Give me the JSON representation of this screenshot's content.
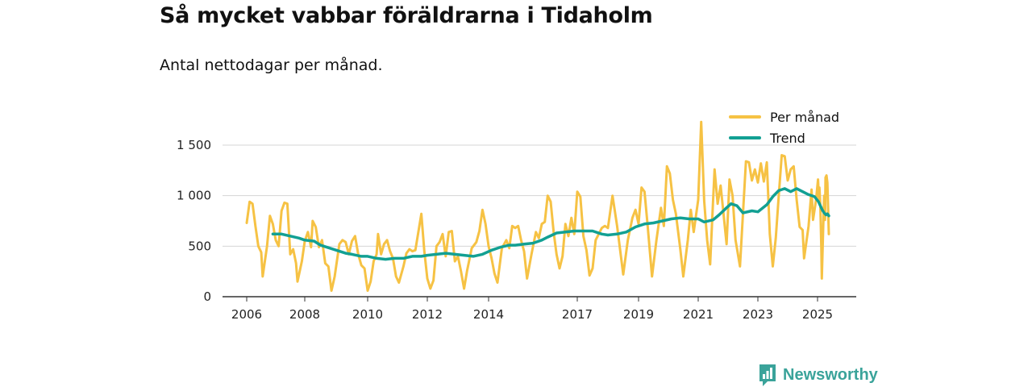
{
  "title": "Så mycket vabbar föräldrarna i Tidaholm",
  "subtitle": "Antal nettodagar per månad.",
  "brand": {
    "name": "Newsworthy"
  },
  "colors": {
    "per_month": "#f6c244",
    "trend": "#12a093",
    "grid": "#d4d4d4",
    "axis": "#333333",
    "brand": "#3aa39a"
  },
  "chart_data": {
    "type": "line",
    "title": "Så mycket vabbar föräldrarna i Tidaholm",
    "subtitle": "Antal nettodagar per månad.",
    "xlabel": "",
    "ylabel": "",
    "xlim": [
      2006.0,
      2025.5
    ],
    "ylim": [
      0,
      1800
    ],
    "grid": true,
    "legend_position": "top-right",
    "y_ticks": [
      {
        "value": 0,
        "label": "0"
      },
      {
        "value": 500,
        "label": "500"
      },
      {
        "value": 1000,
        "label": "1 000"
      },
      {
        "value": 1500,
        "label": "1 500"
      }
    ],
    "x_ticks": [
      {
        "value": 2006,
        "label": "2006"
      },
      {
        "value": 2008,
        "label": "2008"
      },
      {
        "value": 2010,
        "label": "2010"
      },
      {
        "value": 2012,
        "label": "2012"
      },
      {
        "value": 2014,
        "label": "2014"
      },
      {
        "value": 2017,
        "label": "2017"
      },
      {
        "value": 2019,
        "label": "2019"
      },
      {
        "value": 2021,
        "label": "2021"
      },
      {
        "value": 2023,
        "label": "2023"
      },
      {
        "value": 2025,
        "label": "2025"
      }
    ],
    "series": [
      {
        "name": "Per månad",
        "color": "#f6c244",
        "points": [
          [
            2006.0,
            730
          ],
          [
            2006.1,
            940
          ],
          [
            2006.2,
            920
          ],
          [
            2006.3,
            700
          ],
          [
            2006.4,
            500
          ],
          [
            2006.5,
            440
          ],
          [
            2006.55,
            200
          ],
          [
            2006.7,
            500
          ],
          [
            2006.8,
            800
          ],
          [
            2006.9,
            720
          ],
          [
            2007.0,
            560
          ],
          [
            2007.1,
            500
          ],
          [
            2007.2,
            850
          ],
          [
            2007.3,
            930
          ],
          [
            2007.4,
            920
          ],
          [
            2007.5,
            420
          ],
          [
            2007.6,
            470
          ],
          [
            2007.7,
            330
          ],
          [
            2007.75,
            150
          ],
          [
            2007.9,
            350
          ],
          [
            2008.0,
            550
          ],
          [
            2008.1,
            640
          ],
          [
            2008.2,
            490
          ],
          [
            2008.25,
            750
          ],
          [
            2008.35,
            690
          ],
          [
            2008.45,
            490
          ],
          [
            2008.55,
            560
          ],
          [
            2008.65,
            330
          ],
          [
            2008.75,
            300
          ],
          [
            2008.85,
            60
          ],
          [
            2008.95,
            200
          ],
          [
            2009.1,
            520
          ],
          [
            2009.2,
            560
          ],
          [
            2009.3,
            540
          ],
          [
            2009.4,
            420
          ],
          [
            2009.5,
            550
          ],
          [
            2009.6,
            600
          ],
          [
            2009.7,
            420
          ],
          [
            2009.8,
            310
          ],
          [
            2009.9,
            280
          ],
          [
            2010.0,
            60
          ],
          [
            2010.1,
            150
          ],
          [
            2010.2,
            350
          ],
          [
            2010.3,
            420
          ],
          [
            2010.35,
            620
          ],
          [
            2010.45,
            420
          ],
          [
            2010.55,
            520
          ],
          [
            2010.65,
            560
          ],
          [
            2010.75,
            450
          ],
          [
            2010.85,
            380
          ],
          [
            2010.95,
            200
          ],
          [
            2011.05,
            140
          ],
          [
            2011.2,
            300
          ],
          [
            2011.3,
            430
          ],
          [
            2011.4,
            470
          ],
          [
            2011.5,
            450
          ],
          [
            2011.6,
            460
          ],
          [
            2011.7,
            640
          ],
          [
            2011.8,
            820
          ],
          [
            2011.9,
            450
          ],
          [
            2012.0,
            180
          ],
          [
            2012.1,
            80
          ],
          [
            2012.2,
            160
          ],
          [
            2012.3,
            500
          ],
          [
            2012.4,
            540
          ],
          [
            2012.5,
            620
          ],
          [
            2012.6,
            400
          ],
          [
            2012.7,
            640
          ],
          [
            2012.8,
            650
          ],
          [
            2012.9,
            350
          ],
          [
            2013.0,
            400
          ],
          [
            2013.1,
            250
          ],
          [
            2013.2,
            80
          ],
          [
            2013.3,
            260
          ],
          [
            2013.45,
            480
          ],
          [
            2013.6,
            540
          ],
          [
            2013.7,
            650
          ],
          [
            2013.8,
            860
          ],
          [
            2013.9,
            720
          ],
          [
            2014.0,
            500
          ],
          [
            2014.1,
            380
          ],
          [
            2014.2,
            230
          ],
          [
            2014.3,
            140
          ],
          [
            2014.45,
            480
          ],
          [
            2014.6,
            560
          ],
          [
            2014.7,
            480
          ],
          [
            2014.8,
            700
          ],
          [
            2014.9,
            680
          ],
          [
            2015.0,
            700
          ],
          [
            2015.1,
            560
          ],
          [
            2015.2,
            450
          ],
          [
            2015.3,
            180
          ],
          [
            2015.45,
            420
          ],
          [
            2015.6,
            640
          ],
          [
            2015.7,
            580
          ],
          [
            2015.8,
            720
          ],
          [
            2015.9,
            740
          ],
          [
            2016.0,
            1000
          ],
          [
            2016.1,
            940
          ],
          [
            2016.2,
            640
          ],
          [
            2016.3,
            420
          ],
          [
            2016.4,
            280
          ],
          [
            2016.5,
            400
          ],
          [
            2016.6,
            720
          ],
          [
            2016.7,
            600
          ],
          [
            2016.8,
            780
          ],
          [
            2016.9,
            620
          ],
          [
            2017.0,
            1040
          ],
          [
            2017.1,
            990
          ],
          [
            2017.2,
            600
          ],
          [
            2017.3,
            460
          ],
          [
            2017.4,
            210
          ],
          [
            2017.5,
            280
          ],
          [
            2017.6,
            560
          ],
          [
            2017.7,
            620
          ],
          [
            2017.8,
            680
          ],
          [
            2017.9,
            700
          ],
          [
            2018.0,
            680
          ],
          [
            2018.15,
            1000
          ],
          [
            2018.3,
            700
          ],
          [
            2018.5,
            220
          ],
          [
            2018.65,
            560
          ],
          [
            2018.8,
            780
          ],
          [
            2018.9,
            860
          ],
          [
            2019.0,
            720
          ],
          [
            2019.1,
            1080
          ],
          [
            2019.2,
            1040
          ],
          [
            2019.3,
            720
          ],
          [
            2019.45,
            200
          ],
          [
            2019.6,
            560
          ],
          [
            2019.75,
            880
          ],
          [
            2019.85,
            700
          ],
          [
            2019.95,
            1290
          ],
          [
            2020.05,
            1220
          ],
          [
            2020.15,
            960
          ],
          [
            2020.25,
            820
          ],
          [
            2020.4,
            470
          ],
          [
            2020.5,
            200
          ],
          [
            2020.65,
            560
          ],
          [
            2020.75,
            860
          ],
          [
            2020.85,
            640
          ],
          [
            2021.0,
            960
          ],
          [
            2021.1,
            1730
          ],
          [
            2021.2,
            950
          ],
          [
            2021.3,
            560
          ],
          [
            2021.4,
            320
          ],
          [
            2021.5,
            960
          ],
          [
            2021.55,
            1260
          ],
          [
            2021.65,
            920
          ],
          [
            2021.75,
            1100
          ],
          [
            2021.85,
            820
          ],
          [
            2021.95,
            520
          ],
          [
            2022.05,
            1160
          ],
          [
            2022.15,
            1000
          ],
          [
            2022.25,
            560
          ],
          [
            2022.4,
            300
          ],
          [
            2022.5,
            820
          ],
          [
            2022.6,
            1340
          ],
          [
            2022.7,
            1330
          ],
          [
            2022.8,
            1150
          ],
          [
            2022.9,
            1260
          ],
          [
            2023.0,
            1130
          ],
          [
            2023.1,
            1320
          ],
          [
            2023.2,
            1140
          ],
          [
            2023.3,
            1330
          ],
          [
            2023.4,
            620
          ],
          [
            2023.5,
            300
          ],
          [
            2023.6,
            580
          ],
          [
            2023.7,
            1000
          ],
          [
            2023.8,
            1400
          ],
          [
            2023.9,
            1390
          ],
          [
            2024.0,
            1150
          ],
          [
            2024.1,
            1260
          ],
          [
            2024.2,
            1290
          ],
          [
            2024.3,
            960
          ],
          [
            2024.4,
            690
          ],
          [
            2024.5,
            660
          ],
          [
            2024.55,
            380
          ],
          [
            2024.7,
            700
          ],
          [
            2024.8,
            1060
          ],
          [
            2024.85,
            760
          ],
          [
            2024.95,
            960
          ],
          [
            2025.05,
            1160
          ],
          [
            2025.15,
            950
          ],
          [
            2025.2,
            1080
          ],
          [
            2025.3,
            900
          ],
          [
            2025.4,
            480
          ],
          [
            2025.45,
            180
          ],
          [
            2025.6,
            680
          ],
          [
            2025.7,
            1000
          ],
          [
            2025.8,
            760
          ],
          [
            2025.85,
            1180
          ],
          [
            2025.95,
            1200
          ],
          [
            2026.05,
            1130
          ],
          [
            2026.2,
            620
          ]
        ]
      },
      {
        "name": "Trend",
        "color": "#12a093",
        "points": [
          [
            2006.9,
            620
          ],
          [
            2007.2,
            620
          ],
          [
            2007.5,
            600
          ],
          [
            2007.8,
            580
          ],
          [
            2008.0,
            560
          ],
          [
            2008.3,
            550
          ],
          [
            2008.5,
            510
          ],
          [
            2008.8,
            480
          ],
          [
            2009.0,
            460
          ],
          [
            2009.3,
            430
          ],
          [
            2009.5,
            420
          ],
          [
            2009.8,
            400
          ],
          [
            2010.0,
            400
          ],
          [
            2010.3,
            380
          ],
          [
            2010.6,
            370
          ],
          [
            2010.9,
            380
          ],
          [
            2011.2,
            380
          ],
          [
            2011.5,
            400
          ],
          [
            2011.8,
            400
          ],
          [
            2012.0,
            410
          ],
          [
            2012.3,
            420
          ],
          [
            2012.6,
            430
          ],
          [
            2012.9,
            420
          ],
          [
            2013.2,
            410
          ],
          [
            2013.5,
            400
          ],
          [
            2013.8,
            420
          ],
          [
            2014.1,
            460
          ],
          [
            2014.4,
            490
          ],
          [
            2014.7,
            510
          ],
          [
            2014.9,
            510
          ],
          [
            2015.2,
            520
          ],
          [
            2015.5,
            530
          ],
          [
            2015.8,
            560
          ],
          [
            2016.0,
            590
          ],
          [
            2016.3,
            630
          ],
          [
            2016.6,
            640
          ],
          [
            2016.9,
            650
          ],
          [
            2017.2,
            650
          ],
          [
            2017.5,
            650
          ],
          [
            2017.8,
            620
          ],
          [
            2018.0,
            610
          ],
          [
            2018.3,
            620
          ],
          [
            2018.6,
            640
          ],
          [
            2018.9,
            690
          ],
          [
            2019.2,
            720
          ],
          [
            2019.5,
            730
          ],
          [
            2019.8,
            750
          ],
          [
            2020.1,
            770
          ],
          [
            2020.4,
            780
          ],
          [
            2020.7,
            770
          ],
          [
            2021.0,
            770
          ],
          [
            2021.2,
            740
          ],
          [
            2021.5,
            760
          ],
          [
            2021.7,
            810
          ],
          [
            2021.95,
            880
          ],
          [
            2022.1,
            920
          ],
          [
            2022.3,
            900
          ],
          [
            2022.5,
            830
          ],
          [
            2022.8,
            850
          ],
          [
            2023.0,
            840
          ],
          [
            2023.3,
            910
          ],
          [
            2023.5,
            990
          ],
          [
            2023.7,
            1050
          ],
          [
            2023.9,
            1070
          ],
          [
            2024.1,
            1040
          ],
          [
            2024.3,
            1070
          ],
          [
            2024.5,
            1040
          ],
          [
            2024.7,
            1010
          ],
          [
            2024.9,
            990
          ],
          [
            2025.1,
            940
          ],
          [
            2025.3,
            900
          ],
          [
            2025.5,
            860
          ],
          [
            2025.7,
            830
          ],
          [
            2025.9,
            810
          ],
          [
            2026.05,
            820
          ],
          [
            2026.2,
            800
          ]
        ]
      }
    ]
  }
}
